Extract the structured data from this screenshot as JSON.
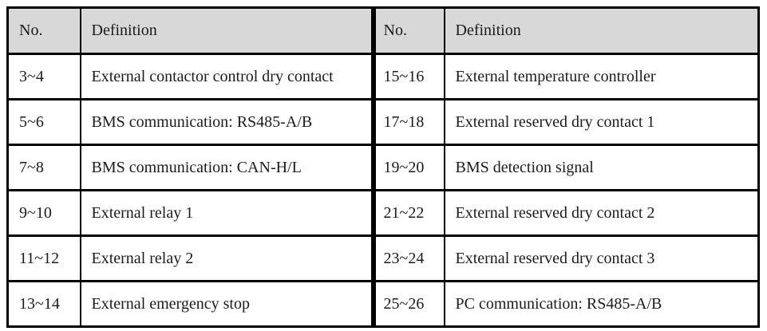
{
  "colors": {
    "background": "#ffffff",
    "header_bg": "#d8d8d8",
    "border": "#000000",
    "text": "#1b1b1b"
  },
  "left_table": {
    "headers": {
      "no": "No.",
      "definition": "Definition"
    },
    "rows": [
      {
        "no": "3~4",
        "definition": "External contactor control dry contact"
      },
      {
        "no": "5~6",
        "definition": "BMS communication: RS485-A/B"
      },
      {
        "no": "7~8",
        "definition": "BMS communication: CAN-H/L"
      },
      {
        "no": "9~10",
        "definition": "External relay 1"
      },
      {
        "no": "11~12",
        "definition": "External relay 2"
      },
      {
        "no": "13~14",
        "definition": "External emergency stop"
      }
    ]
  },
  "right_table": {
    "headers": {
      "no": "No.",
      "definition": "Definition"
    },
    "rows": [
      {
        "no": "15~16",
        "definition": "External temperature controller"
      },
      {
        "no": "17~18",
        "definition": "External reserved dry contact 1"
      },
      {
        "no": "19~20",
        "definition": "BMS detection signal"
      },
      {
        "no": "21~22",
        "definition": "External reserved dry contact 2"
      },
      {
        "no": "23~24",
        "definition": "External reserved dry contact 3"
      },
      {
        "no": "25~26",
        "definition": "PC communication: RS485-A/B"
      }
    ]
  }
}
